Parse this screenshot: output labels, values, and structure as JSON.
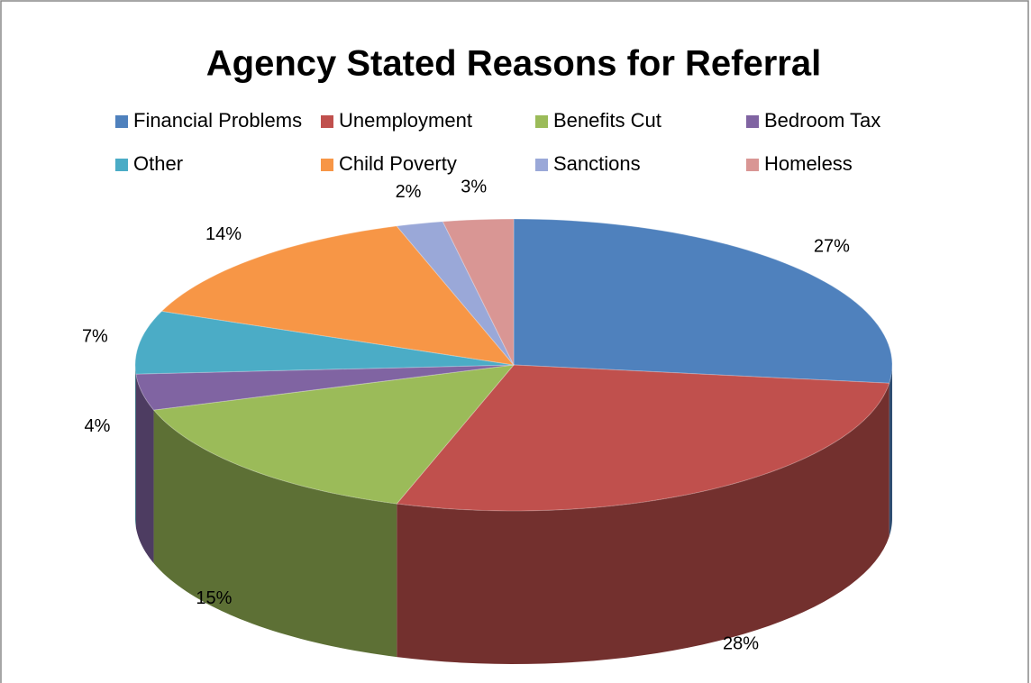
{
  "chart_data": {
    "type": "pie",
    "title": "Agency Stated Reasons for Referral",
    "categories": [
      "Financial Problems",
      "Unemployment",
      "Benefits Cut",
      "Bedroom Tax",
      "Other",
      "Child Poverty",
      "Sanctions",
      "Homeless"
    ],
    "values": [
      27,
      28,
      15,
      4,
      7,
      14,
      2,
      3
    ],
    "value_labels": [
      "27%",
      "28%",
      "15%",
      "4%",
      "7%",
      "14%",
      "2%",
      "3%"
    ],
    "colors": [
      "#4f81bd",
      "#c0504d",
      "#9bbb59",
      "#8064a2",
      "#4bacc6",
      "#f79646",
      "#9aa8d8",
      "#d99694"
    ],
    "legend": "top"
  }
}
